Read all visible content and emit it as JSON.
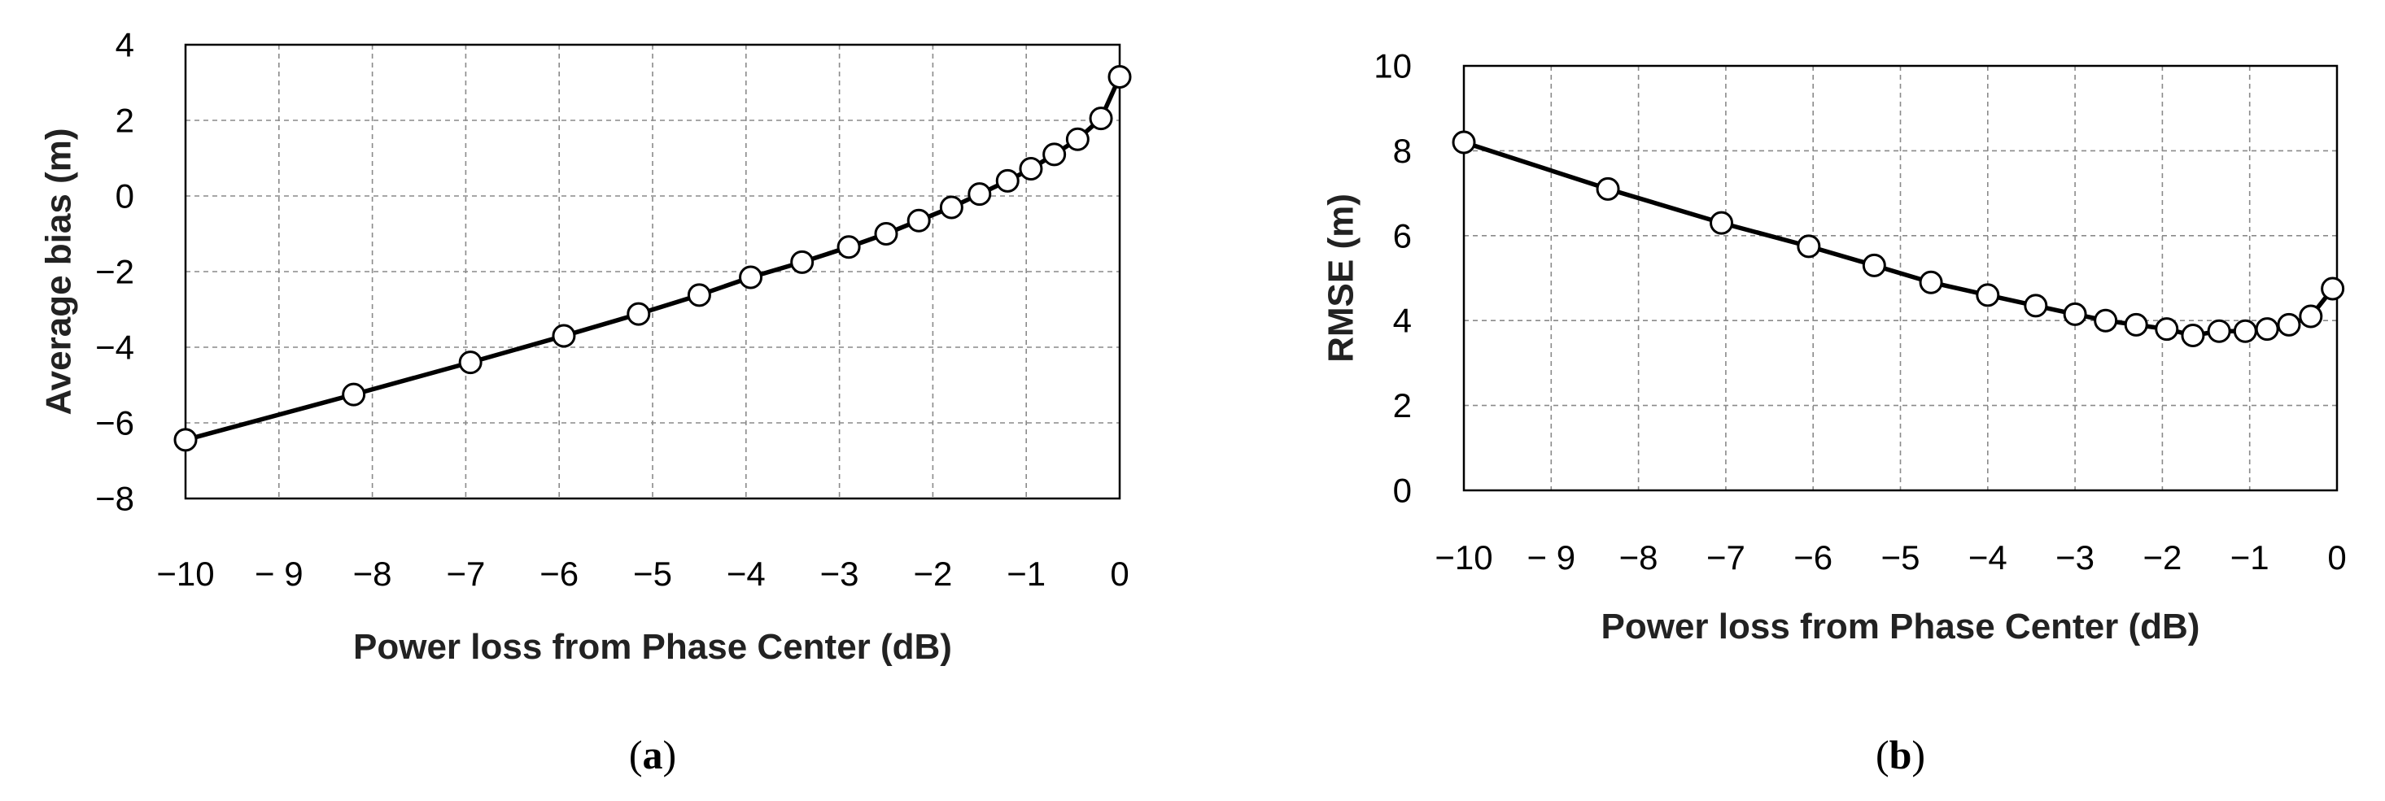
{
  "chart_data": [
    {
      "type": "line",
      "panel": "a",
      "caption": "a",
      "xlabel": "Power loss from Phase Center (dB)",
      "ylabel": "Average bias (m)",
      "xlim": [
        -10,
        0
      ],
      "ylim": [
        -8,
        4
      ],
      "xticks": [
        -10,
        -9,
        -8,
        -7,
        -6,
        -5,
        -4,
        -3,
        -2,
        -1,
        0
      ],
      "yticks": [
        -8,
        -6,
        -4,
        -2,
        0,
        2,
        4
      ],
      "grid": true,
      "xtick_labels": [
        "−10",
        "− 9",
        "−8",
        "−7",
        "−6",
        "−5",
        "−4",
        "−3",
        "−2",
        "−1",
        "0"
      ],
      "ytick_labels": [
        "−8",
        "−6",
        "−4",
        "−2",
        "0",
        "2",
        "4"
      ],
      "series": [
        {
          "x": [
            -10,
            -8.2,
            -6.95,
            -5.95,
            -5.15,
            -4.5,
            -3.95,
            -3.4,
            -2.9,
            -2.5,
            -2.15,
            -1.8,
            -1.5,
            -1.2,
            -0.95,
            -0.7,
            -0.45,
            -0.2,
            0
          ],
          "y": [
            -6.45,
            -5.25,
            -4.4,
            -3.7,
            -3.12,
            -2.62,
            -2.15,
            -1.75,
            -1.35,
            -1.0,
            -0.65,
            -0.3,
            0.05,
            0.4,
            0.72,
            1.1,
            1.5,
            2.05,
            3.15
          ]
        }
      ]
    },
    {
      "type": "line",
      "panel": "b",
      "caption": "b",
      "xlabel": "Power loss from Phase Center (dB)",
      "ylabel": "RMSE (m)",
      "xlim": [
        -10,
        0
      ],
      "ylim": [
        0,
        10
      ],
      "xticks": [
        -10,
        -9,
        -8,
        -7,
        -6,
        -5,
        -4,
        -3,
        -2,
        -1,
        0
      ],
      "yticks": [
        0,
        2,
        4,
        6,
        8,
        10
      ],
      "grid": true,
      "xtick_labels": [
        "−10",
        "− 9",
        "−8",
        "−7",
        "−6",
        "−5",
        "−4",
        "−3",
        "−2",
        "−1",
        "0"
      ],
      "ytick_labels": [
        "0",
        "2",
        "4",
        "6",
        "8",
        "10"
      ],
      "series": [
        {
          "x": [
            -10,
            -8.35,
            -7.05,
            -6.05,
            -5.3,
            -4.65,
            -4.0,
            -3.45,
            -3.0,
            -2.65,
            -2.3,
            -1.95,
            -1.65,
            -1.35,
            -1.05,
            -0.8,
            -0.55,
            -0.3,
            -0.05
          ],
          "y": [
            8.2,
            7.1,
            6.3,
            5.75,
            5.3,
            4.9,
            4.6,
            4.35,
            4.15,
            4.0,
            3.9,
            3.8,
            3.65,
            3.75,
            3.75,
            3.8,
            3.9,
            4.1,
            4.75
          ]
        }
      ]
    }
  ]
}
